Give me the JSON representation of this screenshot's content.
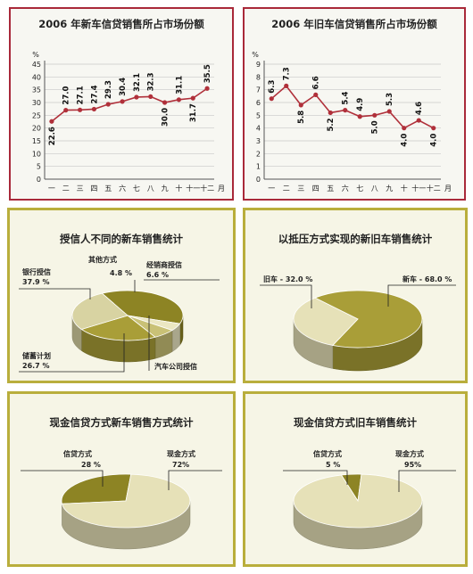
{
  "chart_data": [
    {
      "type": "line",
      "title": "2006 年新车信贷销售所占市场份额",
      "ylabel": "%",
      "xlabel": "月",
      "categories": [
        "一",
        "二",
        "三",
        "四",
        "五",
        "六",
        "七",
        "八",
        "九",
        "十",
        "十一",
        "十二"
      ],
      "values": [
        22.6,
        27.0,
        27.1,
        27.4,
        29.3,
        30.4,
        32.1,
        32.3,
        30.0,
        31.1,
        31.7,
        35.5
      ],
      "value_labels": [
        "22.6",
        "27.0",
        "27.1",
        "27.4",
        "29.3",
        "30.4",
        "32.1",
        "32.3",
        "30.0",
        "31.1",
        "31.7",
        "35.5"
      ],
      "ylim": [
        0,
        45
      ],
      "yticks": [
        "0",
        "5",
        "10",
        "15",
        "20",
        "25",
        "30",
        "35",
        "40",
        "45"
      ],
      "grid": true,
      "line_color": "#b0303a"
    },
    {
      "type": "line",
      "title": "2006 年旧车信贷销售所占市场份额",
      "ylabel": "%",
      "xlabel": "月",
      "categories": [
        "一",
        "二",
        "三",
        "四",
        "五",
        "六",
        "七",
        "八",
        "九",
        "十",
        "十一",
        "十二"
      ],
      "values": [
        6.3,
        7.3,
        5.8,
        6.6,
        5.2,
        5.4,
        4.9,
        5.0,
        5.3,
        4.0,
        4.6,
        4.0
      ],
      "value_labels": [
        "6.3",
        "7.3",
        "5.8",
        "6.6",
        "5.2",
        "5.4",
        "4.9",
        "5.0",
        "5.3",
        "4.0",
        "4.6",
        "4.0"
      ],
      "ylim": [
        0,
        9
      ],
      "yticks": [
        "0",
        "1",
        "2",
        "3",
        "4",
        "5",
        "6",
        "7",
        "8",
        "9"
      ],
      "grid": true,
      "line_color": "#b0303a"
    },
    {
      "type": "pie",
      "title": "授信人不同的新车销售统计",
      "slices": [
        {
          "label": "银行授信",
          "value_label": "37.9 %",
          "value": 37.9,
          "color": "#8d8424"
        },
        {
          "label": "其他方式",
          "value_label": "4.8 %",
          "value": 4.8,
          "color": "#ebe7c2"
        },
        {
          "label": "经销商授信",
          "value_label": "6.6 %",
          "value": 6.6,
          "color": "#c9c176"
        },
        {
          "label": "汽车公司授信",
          "value_label": "",
          "value": 24.0,
          "color": "#a99e38"
        },
        {
          "label": "储蓄计划",
          "value_label": "26.7 %",
          "value": 26.7,
          "color": "#d8d3a2"
        }
      ]
    },
    {
      "type": "pie",
      "title": "以抵压方式实现的新旧车销售统计",
      "slices": [
        {
          "label": "新车",
          "value_label": "新车 - 68.0 %",
          "value": 68.0,
          "color": "#a99e38"
        },
        {
          "label": "旧车",
          "value_label": "旧车 - 32.0 %",
          "value": 32.0,
          "color": "#e6e1b8"
        }
      ]
    },
    {
      "type": "pie",
      "title": "现金信贷方式新车销售方式统计",
      "slices": [
        {
          "label": "信贷方式",
          "value_label": "28 %",
          "value": 28,
          "color": "#8d8424"
        },
        {
          "label": "现金方式",
          "value_label": "72%",
          "value": 72,
          "color": "#e6e1b8"
        }
      ]
    },
    {
      "type": "pie",
      "title": "现金信贷方式旧车销售统计",
      "slices": [
        {
          "label": "信贷方式",
          "value_label": "5 %",
          "value": 5,
          "color": "#8d8424"
        },
        {
          "label": "现金方式",
          "value_label": "95%",
          "value": 95,
          "color": "#e6e1b8"
        }
      ]
    }
  ]
}
